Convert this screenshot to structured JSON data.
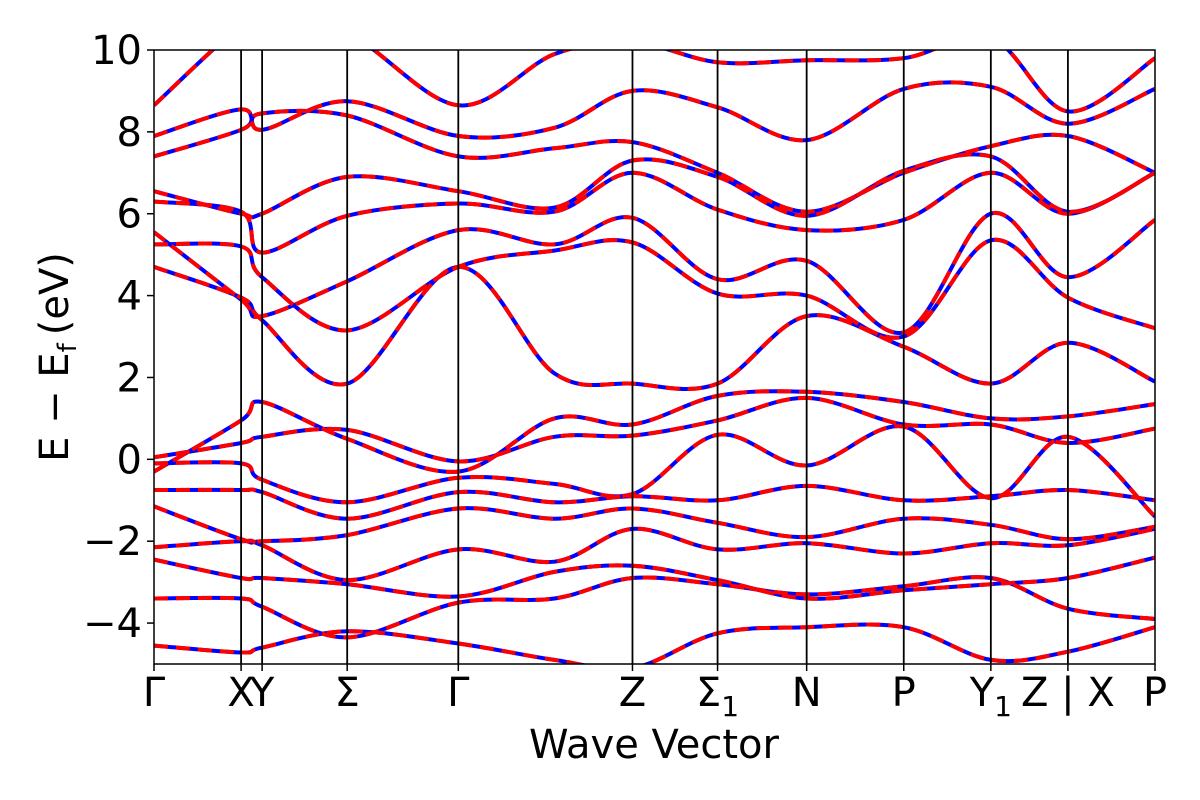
{
  "chart_data": {
    "type": "line",
    "title": "",
    "xlabel": "Wave Vector",
    "ylabel": "E − E",
    "ylabel_subscript": "f",
    "ylabel_unit": "(eV)",
    "ylim": [
      -5,
      10
    ],
    "yticks": [
      {
        "value": 10,
        "label": "10"
      },
      {
        "value": 8,
        "label": "8"
      },
      {
        "value": 6,
        "label": "6"
      },
      {
        "value": 4,
        "label": "4"
      },
      {
        "value": 2,
        "label": "2"
      },
      {
        "value": 0,
        "label": "0"
      },
      {
        "value": -2,
        "label": "−2"
      },
      {
        "value": -4,
        "label": "−4"
      }
    ],
    "xlim": [
      0,
      1
    ],
    "kpoints": [
      {
        "x": 0.0,
        "label": "Γ",
        "sub": ""
      },
      {
        "x": 0.087,
        "label": "X",
        "sub": ""
      },
      {
        "x": 0.108,
        "label": "Y",
        "sub": ""
      },
      {
        "x": 0.193,
        "label": "Σ",
        "sub": ""
      },
      {
        "x": 0.304,
        "label": "Γ",
        "sub": ""
      },
      {
        "x": 0.478,
        "label": "Z",
        "sub": ""
      },
      {
        "x": 0.563,
        "label": "Σ",
        "sub": "1"
      },
      {
        "x": 0.652,
        "label": "N",
        "sub": ""
      },
      {
        "x": 0.749,
        "label": "P",
        "sub": ""
      },
      {
        "x": 0.836,
        "label": "Y",
        "sub": "1"
      },
      {
        "x": 0.913,
        "label": "Z | X",
        "sub": ""
      },
      {
        "x": 1.0,
        "label": "P",
        "sub": ""
      }
    ],
    "series_styles": [
      {
        "color": "#0000ff",
        "dash": "",
        "width": 4
      },
      {
        "color": "#ff0000",
        "dash": "14,8",
        "width": 4
      }
    ],
    "bands": [
      [
        [
          0,
          -4.55
        ],
        [
          0.087,
          -4.72
        ],
        [
          0.108,
          -4.6
        ],
        [
          0.193,
          -4.2
        ],
        [
          0.304,
          -4.5
        ],
        [
          0.4,
          -4.9
        ],
        [
          0.478,
          -5.1
        ],
        [
          0.563,
          -4.25
        ],
        [
          0.652,
          -4.1
        ],
        [
          0.749,
          -4.1
        ],
        [
          0.836,
          -4.9
        ],
        [
          0.913,
          -4.7
        ],
        [
          1.0,
          -4.1
        ]
      ],
      [
        [
          0,
          -3.4
        ],
        [
          0.087,
          -3.4
        ],
        [
          0.108,
          -3.6
        ],
        [
          0.193,
          -4.35
        ],
        [
          0.304,
          -3.5
        ],
        [
          0.4,
          -3.4
        ],
        [
          0.478,
          -2.9
        ],
        [
          0.563,
          -3.05
        ],
        [
          0.652,
          -3.3
        ],
        [
          0.749,
          -3.1
        ],
        [
          0.836,
          -2.9
        ],
        [
          0.913,
          -3.65
        ],
        [
          1.0,
          -3.9
        ]
      ],
      [
        [
          0,
          -2.45
        ],
        [
          0.087,
          -2.9
        ],
        [
          0.108,
          -2.9
        ],
        [
          0.193,
          -3.05
        ],
        [
          0.304,
          -3.35
        ],
        [
          0.4,
          -2.75
        ],
        [
          0.478,
          -2.6
        ],
        [
          0.563,
          -2.95
        ],
        [
          0.652,
          -3.4
        ],
        [
          0.749,
          -3.2
        ],
        [
          0.836,
          -3.05
        ],
        [
          0.913,
          -2.9
        ],
        [
          1.0,
          -2.4
        ]
      ],
      [
        [
          0,
          -2.15
        ],
        [
          0.087,
          -2.0
        ],
        [
          0.108,
          -2.1
        ],
        [
          0.193,
          -2.95
        ],
        [
          0.304,
          -2.2
        ],
        [
          0.4,
          -2.5
        ],
        [
          0.478,
          -1.7
        ],
        [
          0.563,
          -2.2
        ],
        [
          0.652,
          -2.05
        ],
        [
          0.749,
          -2.3
        ],
        [
          0.836,
          -2.05
        ],
        [
          0.913,
          -2.1
        ],
        [
          1.0,
          -1.7
        ]
      ],
      [
        [
          0,
          -1.15
        ],
        [
          0.087,
          -1.95
        ],
        [
          0.108,
          -2.0
        ],
        [
          0.193,
          -1.85
        ],
        [
          0.304,
          -1.2
        ],
        [
          0.4,
          -1.45
        ],
        [
          0.478,
          -1.2
        ],
        [
          0.563,
          -1.55
        ],
        [
          0.652,
          -1.9
        ],
        [
          0.749,
          -1.45
        ],
        [
          0.836,
          -1.6
        ],
        [
          0.913,
          -1.95
        ],
        [
          1.0,
          -1.65
        ]
      ],
      [
        [
          0,
          -0.75
        ],
        [
          0.087,
          -0.75
        ],
        [
          0.108,
          -0.8
        ],
        [
          0.193,
          -1.45
        ],
        [
          0.304,
          -0.8
        ],
        [
          0.4,
          -1.05
        ],
        [
          0.478,
          -0.9
        ],
        [
          0.563,
          -1.0
        ],
        [
          0.652,
          -0.65
        ],
        [
          0.749,
          -1.0
        ],
        [
          0.836,
          -0.9
        ],
        [
          0.913,
          -0.75
        ],
        [
          1.0,
          -1.0
        ]
      ],
      [
        [
          0,
          -0.1
        ],
        [
          0.087,
          -0.1
        ],
        [
          0.108,
          -0.5
        ],
        [
          0.193,
          -1.05
        ],
        [
          0.304,
          -0.45
        ],
        [
          0.4,
          -0.6
        ],
        [
          0.478,
          -0.85
        ],
        [
          0.563,
          0.6
        ],
        [
          0.652,
          -0.15
        ],
        [
          0.749,
          0.8
        ],
        [
          0.836,
          -0.95
        ],
        [
          0.913,
          0.55
        ],
        [
          1.0,
          -1.4
        ]
      ],
      [
        [
          0,
          0.05
        ],
        [
          0.087,
          0.4
        ],
        [
          0.108,
          0.55
        ],
        [
          0.193,
          0.72
        ],
        [
          0.304,
          -0.05
        ],
        [
          0.4,
          0.55
        ],
        [
          0.478,
          0.58
        ],
        [
          0.563,
          0.95
        ],
        [
          0.652,
          1.5
        ],
        [
          0.749,
          0.85
        ],
        [
          0.836,
          0.85
        ],
        [
          0.913,
          0.4
        ],
        [
          1.0,
          0.75
        ]
      ],
      [
        [
          0,
          -0.3
        ],
        [
          0.087,
          0.95
        ],
        [
          0.108,
          1.4
        ],
        [
          0.193,
          0.5
        ],
        [
          0.304,
          -0.3
        ],
        [
          0.4,
          1.0
        ],
        [
          0.478,
          0.85
        ],
        [
          0.563,
          1.55
        ],
        [
          0.652,
          1.65
        ],
        [
          0.749,
          1.4
        ],
        [
          0.836,
          1.0
        ],
        [
          0.913,
          1.05
        ],
        [
          1.0,
          1.35
        ]
      ],
      [
        [
          0,
          4.7
        ],
        [
          0.087,
          3.95
        ],
        [
          0.108,
          3.4
        ],
        [
          0.193,
          1.85
        ],
        [
          0.304,
          4.7
        ],
        [
          0.4,
          2.1
        ],
        [
          0.478,
          1.85
        ],
        [
          0.563,
          1.85
        ],
        [
          0.652,
          3.5
        ],
        [
          0.749,
          2.75
        ],
        [
          0.836,
          1.85
        ],
        [
          0.913,
          2.85
        ],
        [
          1.0,
          1.9
        ]
      ],
      [
        [
          0,
          5.25
        ],
        [
          0.087,
          5.2
        ],
        [
          0.108,
          4.45
        ],
        [
          0.193,
          3.15
        ],
        [
          0.304,
          4.7
        ],
        [
          0.4,
          5.1
        ],
        [
          0.478,
          5.3
        ],
        [
          0.563,
          4.05
        ],
        [
          0.652,
          4.0
        ],
        [
          0.749,
          3.0
        ],
        [
          0.836,
          5.35
        ],
        [
          0.913,
          3.95
        ],
        [
          1.0,
          3.2
        ]
      ],
      [
        [
          0,
          5.55
        ],
        [
          0.087,
          3.9
        ],
        [
          0.108,
          3.5
        ],
        [
          0.193,
          4.35
        ],
        [
          0.304,
          5.6
        ],
        [
          0.4,
          5.25
        ],
        [
          0.478,
          5.9
        ],
        [
          0.563,
          4.4
        ],
        [
          0.652,
          4.85
        ],
        [
          0.749,
          3.1
        ],
        [
          0.836,
          6.0
        ],
        [
          0.913,
          4.45
        ],
        [
          1.0,
          5.85
        ]
      ],
      [
        [
          0,
          6.3
        ],
        [
          0.087,
          6.05
        ],
        [
          0.108,
          5.05
        ],
        [
          0.193,
          5.95
        ],
        [
          0.304,
          6.25
        ],
        [
          0.4,
          6.05
        ],
        [
          0.478,
          7.0
        ],
        [
          0.563,
          6.1
        ],
        [
          0.652,
          5.6
        ],
        [
          0.749,
          5.85
        ],
        [
          0.836,
          7.0
        ],
        [
          0.913,
          6.0
        ],
        [
          1.0,
          7.0
        ]
      ],
      [
        [
          0,
          6.55
        ],
        [
          0.087,
          6.0
        ],
        [
          0.108,
          6.0
        ],
        [
          0.193,
          6.9
        ],
        [
          0.304,
          6.55
        ],
        [
          0.4,
          6.15
        ],
        [
          0.478,
          7.3
        ],
        [
          0.563,
          6.9
        ],
        [
          0.652,
          5.95
        ],
        [
          0.749,
          7.05
        ],
        [
          0.836,
          7.4
        ],
        [
          0.913,
          6.05
        ],
        [
          1.0,
          7.0
        ]
      ],
      [
        [
          0,
          7.4
        ],
        [
          0.087,
          8.05
        ],
        [
          0.108,
          8.45
        ],
        [
          0.193,
          8.4
        ],
        [
          0.304,
          7.4
        ],
        [
          0.4,
          7.6
        ],
        [
          0.478,
          7.75
        ],
        [
          0.563,
          7.0
        ],
        [
          0.652,
          6.05
        ],
        [
          0.749,
          7.0
        ],
        [
          0.836,
          7.65
        ],
        [
          0.913,
          7.9
        ],
        [
          1.0,
          7.0
        ]
      ],
      [
        [
          0,
          7.9
        ],
        [
          0.087,
          8.55
        ],
        [
          0.108,
          8.05
        ],
        [
          0.193,
          8.75
        ],
        [
          0.304,
          7.9
        ],
        [
          0.4,
          8.1
        ],
        [
          0.478,
          9.0
        ],
        [
          0.563,
          8.6
        ],
        [
          0.652,
          7.8
        ],
        [
          0.749,
          9.05
        ],
        [
          0.836,
          9.1
        ],
        [
          0.913,
          8.2
        ],
        [
          1.0,
          9.05
        ]
      ],
      [
        [
          0,
          8.65
        ],
        [
          0.087,
          10.6
        ],
        [
          0.108,
          10.5
        ],
        [
          0.193,
          10.4
        ],
        [
          0.304,
          8.65
        ],
        [
          0.4,
          9.9
        ],
        [
          0.478,
          10.2
        ],
        [
          0.563,
          9.7
        ],
        [
          0.652,
          9.75
        ],
        [
          0.749,
          9.8
        ],
        [
          0.836,
          10.3
        ],
        [
          0.913,
          8.5
        ],
        [
          1.0,
          9.8
        ]
      ]
    ]
  }
}
